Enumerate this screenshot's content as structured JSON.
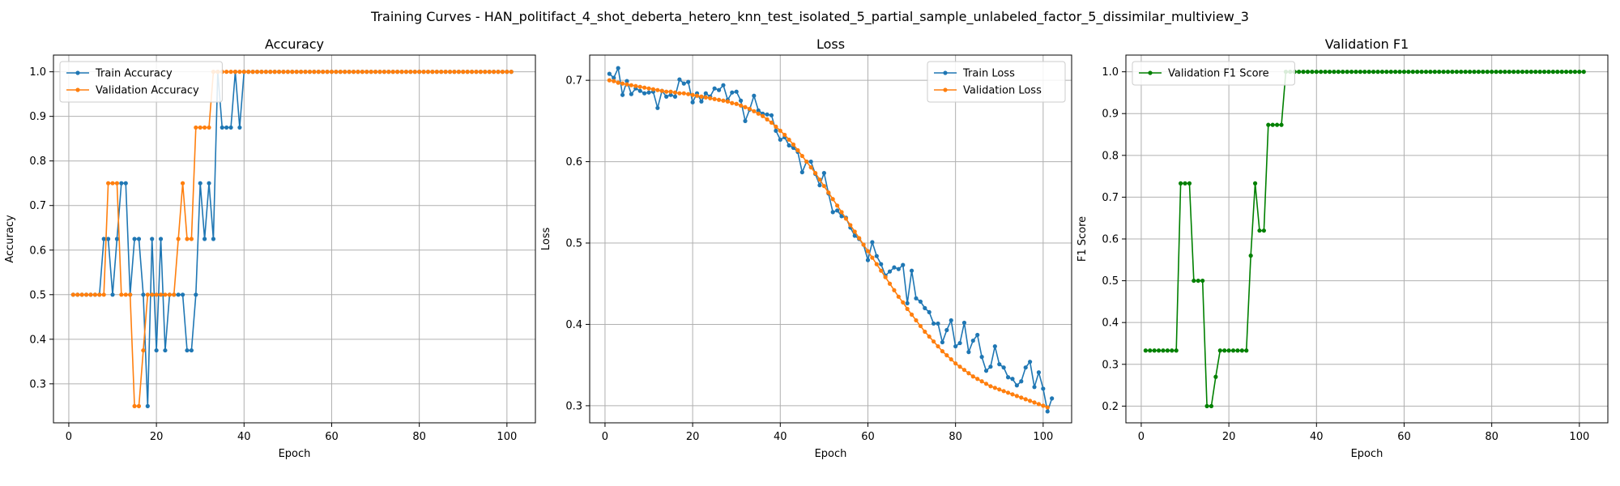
{
  "figure": {
    "suptitle": "Training Curves - HAN_politifact_4_shot_deberta_hetero_knn_test_isolated_5_partial_sample_unlabeled_factor_5_dissimilar_multiview_3"
  },
  "chart_data": [
    {
      "type": "line",
      "title": "Accuracy",
      "xlabel": "Epoch",
      "ylabel": "Accuracy",
      "xlim": [
        -3.5,
        106.5
      ],
      "ylim": [
        0.2125,
        1.0375
      ],
      "xticks": [
        0,
        20,
        40,
        60,
        80,
        100
      ],
      "yticks": [
        0.3,
        0.4,
        0.5,
        0.6,
        0.7,
        0.8,
        0.9,
        1.0
      ],
      "tick_format": 1,
      "grid": true,
      "legend_position": "top-left",
      "series": [
        {
          "name": "Train Accuracy",
          "color": "#1f77b4",
          "values": [
            0.5,
            0.5,
            0.5,
            0.5,
            0.5,
            0.5,
            0.5,
            0.625,
            0.625,
            0.5,
            0.625,
            0.75,
            0.75,
            0.5,
            0.625,
            0.625,
            0.5,
            0.25,
            0.625,
            0.375,
            0.625,
            0.375,
            0.5,
            0.5,
            0.5,
            0.5,
            0.375,
            0.375,
            0.5,
            0.75,
            0.625,
            0.75,
            0.625,
            1.0,
            0.875,
            0.875,
            0.875,
            1.0,
            0.875,
            1.0,
            1.0,
            1.0,
            1.0,
            1.0,
            1.0,
            1.0,
            1.0,
            1.0,
            1.0,
            1.0,
            1.0,
            1.0,
            1.0,
            1.0,
            1.0,
            1.0,
            1.0,
            1.0,
            1.0,
            1.0,
            1.0,
            1.0,
            1.0,
            1.0,
            1.0,
            1.0,
            1.0,
            1.0,
            1.0,
            1.0,
            1.0,
            1.0,
            1.0,
            1.0,
            1.0,
            1.0,
            1.0,
            1.0,
            1.0,
            1.0,
            1.0,
            1.0,
            1.0,
            1.0,
            1.0,
            1.0,
            1.0,
            1.0,
            1.0,
            1.0,
            1.0,
            1.0,
            1.0,
            1.0,
            1.0,
            1.0,
            1.0,
            1.0,
            1.0,
            1.0,
            1.0
          ]
        },
        {
          "name": "Validation Accuracy",
          "color": "#ff7f0e",
          "values": [
            0.5,
            0.5,
            0.5,
            0.5,
            0.5,
            0.5,
            0.5,
            0.5,
            0.75,
            0.75,
            0.75,
            0.5,
            0.5,
            0.5,
            0.25,
            0.25,
            0.375,
            0.5,
            0.5,
            0.5,
            0.5,
            0.5,
            0.5,
            0.5,
            0.625,
            0.75,
            0.625,
            0.625,
            0.875,
            0.875,
            0.875,
            0.875,
            1.0,
            1.0,
            1.0,
            1.0,
            1.0,
            1.0,
            1.0,
            1.0,
            1.0,
            1.0,
            1.0,
            1.0,
            1.0,
            1.0,
            1.0,
            1.0,
            1.0,
            1.0,
            1.0,
            1.0,
            1.0,
            1.0,
            1.0,
            1.0,
            1.0,
            1.0,
            1.0,
            1.0,
            1.0,
            1.0,
            1.0,
            1.0,
            1.0,
            1.0,
            1.0,
            1.0,
            1.0,
            1.0,
            1.0,
            1.0,
            1.0,
            1.0,
            1.0,
            1.0,
            1.0,
            1.0,
            1.0,
            1.0,
            1.0,
            1.0,
            1.0,
            1.0,
            1.0,
            1.0,
            1.0,
            1.0,
            1.0,
            1.0,
            1.0,
            1.0,
            1.0,
            1.0,
            1.0,
            1.0,
            1.0,
            1.0,
            1.0,
            1.0,
            1.0
          ]
        }
      ]
    },
    {
      "type": "line",
      "title": "Loss",
      "xlabel": "Epoch",
      "ylabel": "Loss",
      "xlim": [
        -3.5,
        106.5
      ],
      "ylim": [
        0.279,
        0.731
      ],
      "xticks": [
        0,
        20,
        40,
        60,
        80,
        100
      ],
      "yticks": [
        0.3,
        0.4,
        0.5,
        0.6,
        0.7
      ],
      "tick_format": 1,
      "grid": true,
      "legend_position": "top-right",
      "series": [
        {
          "name": "Train Loss",
          "color": "#1f77b4",
          "values": [
            0.708,
            0.703,
            0.715,
            0.682,
            0.699,
            0.683,
            0.69,
            0.687,
            0.684,
            0.685,
            0.686,
            0.666,
            0.687,
            0.68,
            0.682,
            0.68,
            0.701,
            0.696,
            0.698,
            0.673,
            0.684,
            0.674,
            0.684,
            0.68,
            0.69,
            0.688,
            0.694,
            0.676,
            0.685,
            0.686,
            0.675,
            0.65,
            0.664,
            0.681,
            0.663,
            0.659,
            0.658,
            0.657,
            0.638,
            0.627,
            0.63,
            0.62,
            0.617,
            0.612,
            0.587,
            0.6,
            0.6,
            0.585,
            0.571,
            0.586,
            0.561,
            0.538,
            0.54,
            0.533,
            0.531,
            0.519,
            0.509,
            0.505,
            0.498,
            0.479,
            0.501,
            0.484,
            0.474,
            0.46,
            0.465,
            0.47,
            0.468,
            0.473,
            0.426,
            0.466,
            0.432,
            0.428,
            0.42,
            0.415,
            0.401,
            0.401,
            0.378,
            0.393,
            0.405,
            0.373,
            0.377,
            0.402,
            0.366,
            0.38,
            0.387,
            0.36,
            0.343,
            0.348,
            0.373,
            0.351,
            0.347,
            0.335,
            0.333,
            0.325,
            0.33,
            0.347,
            0.354,
            0.323,
            0.341,
            0.321,
            0.293,
            0.309
          ]
        },
        {
          "name": "Validation Loss",
          "color": "#ff7f0e",
          "values": [
            0.7,
            0.699,
            0.697,
            0.696,
            0.695,
            0.694,
            0.693,
            0.692,
            0.691,
            0.69,
            0.689,
            0.688,
            0.687,
            0.686,
            0.686,
            0.685,
            0.684,
            0.684,
            0.683,
            0.682,
            0.681,
            0.68,
            0.679,
            0.678,
            0.677,
            0.676,
            0.675,
            0.674,
            0.672,
            0.671,
            0.669,
            0.667,
            0.665,
            0.662,
            0.659,
            0.656,
            0.652,
            0.648,
            0.643,
            0.638,
            0.633,
            0.627,
            0.621,
            0.614,
            0.607,
            0.6,
            0.593,
            0.586,
            0.578,
            0.57,
            0.562,
            0.554,
            0.546,
            0.538,
            0.53,
            0.522,
            0.514,
            0.506,
            0.498,
            0.49,
            0.482,
            0.474,
            0.466,
            0.458,
            0.45,
            0.442,
            0.434,
            0.427,
            0.419,
            0.412,
            0.405,
            0.398,
            0.391,
            0.385,
            0.379,
            0.373,
            0.367,
            0.362,
            0.357,
            0.352,
            0.348,
            0.344,
            0.34,
            0.336,
            0.333,
            0.33,
            0.327,
            0.324,
            0.322,
            0.32,
            0.318,
            0.316,
            0.314,
            0.312,
            0.31,
            0.308,
            0.306,
            0.304,
            0.302,
            0.3,
            0.298
          ]
        }
      ]
    },
    {
      "type": "line",
      "title": "Validation F1",
      "xlabel": "Epoch",
      "ylabel": "F1 Score",
      "xlim": [
        -3.5,
        106.5
      ],
      "ylim": [
        0.16,
        1.04
      ],
      "xticks": [
        0,
        20,
        40,
        60,
        80,
        100
      ],
      "yticks": [
        0.2,
        0.3,
        0.4,
        0.5,
        0.6,
        0.7,
        0.8,
        0.9,
        1.0
      ],
      "tick_format": 1,
      "grid": true,
      "legend_position": "top-left",
      "series": [
        {
          "name": "Validation F1 Score",
          "color": "#008000",
          "values": [
            0.333,
            0.333,
            0.333,
            0.333,
            0.333,
            0.333,
            0.333,
            0.333,
            0.733,
            0.733,
            0.733,
            0.5,
            0.5,
            0.5,
            0.2,
            0.2,
            0.27,
            0.333,
            0.333,
            0.333,
            0.333,
            0.333,
            0.333,
            0.333,
            0.56,
            0.733,
            0.62,
            0.62,
            0.873,
            0.873,
            0.873,
            0.873,
            1.0,
            1.0,
            1.0,
            1.0,
            1.0,
            1.0,
            1.0,
            1.0,
            1.0,
            1.0,
            1.0,
            1.0,
            1.0,
            1.0,
            1.0,
            1.0,
            1.0,
            1.0,
            1.0,
            1.0,
            1.0,
            1.0,
            1.0,
            1.0,
            1.0,
            1.0,
            1.0,
            1.0,
            1.0,
            1.0,
            1.0,
            1.0,
            1.0,
            1.0,
            1.0,
            1.0,
            1.0,
            1.0,
            1.0,
            1.0,
            1.0,
            1.0,
            1.0,
            1.0,
            1.0,
            1.0,
            1.0,
            1.0,
            1.0,
            1.0,
            1.0,
            1.0,
            1.0,
            1.0,
            1.0,
            1.0,
            1.0,
            1.0,
            1.0,
            1.0,
            1.0,
            1.0,
            1.0,
            1.0,
            1.0,
            1.0,
            1.0,
            1.0,
            1.0
          ]
        }
      ]
    }
  ]
}
